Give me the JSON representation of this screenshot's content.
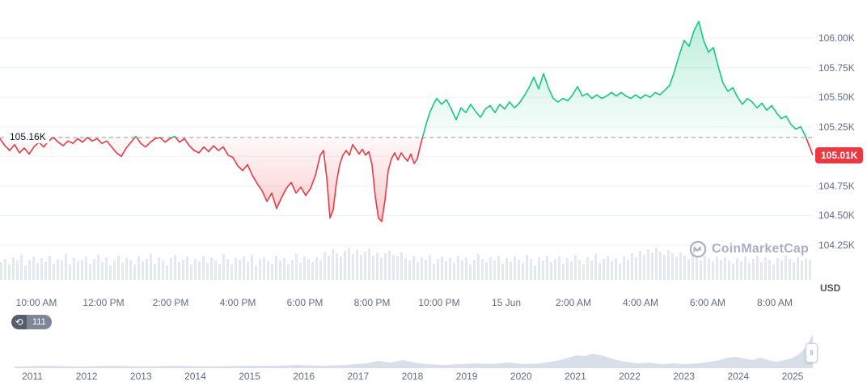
{
  "chart_data": {
    "type": "line",
    "unit": "USD",
    "baseline": {
      "value": 105.16,
      "label": "105.16K"
    },
    "last_price": {
      "value": 105.01,
      "label": "105.01K"
    },
    "y_axis": {
      "unit_label": "USD",
      "ticks": [
        {
          "value": 106.0,
          "label": "106.00K"
        },
        {
          "value": 105.75,
          "label": "105.75K"
        },
        {
          "value": 105.5,
          "label": "105.50K"
        },
        {
          "value": 105.25,
          "label": "105.25K"
        },
        {
          "value": 105.0,
          "label": ""
        },
        {
          "value": 104.75,
          "label": "104.75K"
        },
        {
          "value": 104.5,
          "label": "104.50K"
        },
        {
          "value": 104.25,
          "label": "104.25K"
        }
      ]
    },
    "x_labels": [
      "10:00 AM",
      "12:00 PM",
      "2:00 PM",
      "4:00 PM",
      "6:00 PM",
      "8:00 PM",
      "10:00 PM",
      "15 Jun",
      "2:00 AM",
      "4:00 AM",
      "6:00 AM",
      "8:00 AM"
    ],
    "colors": {
      "up": "#16c784",
      "down": "#ea3943",
      "grid": "#eff2f5",
      "axis_text": "#616e85",
      "baseline_dash": "#7d8aa0",
      "volume": "#e4e8ef",
      "minimap_fill": "#d9dfe8",
      "badge_bg": "#ea3943",
      "badge_text": "#ffffff"
    },
    "points": [
      [
        0,
        105.15
      ],
      [
        6,
        105.09
      ],
      [
        12,
        105.05
      ],
      [
        18,
        105.1
      ],
      [
        24,
        105.03
      ],
      [
        30,
        105.07
      ],
      [
        36,
        105.02
      ],
      [
        42,
        105.08
      ],
      [
        48,
        105.12
      ],
      [
        54,
        105.08
      ],
      [
        60,
        105.13
      ],
      [
        66,
        105.16
      ],
      [
        72,
        105.12
      ],
      [
        78,
        105.09
      ],
      [
        84,
        105.13
      ],
      [
        90,
        105.11
      ],
      [
        96,
        105.15
      ],
      [
        102,
        105.12
      ],
      [
        108,
        105.16
      ],
      [
        114,
        105.13
      ],
      [
        120,
        105.15
      ],
      [
        126,
        105.11
      ],
      [
        132,
        105.13
      ],
      [
        138,
        105.08
      ],
      [
        144,
        105.03
      ],
      [
        150,
        105.0
      ],
      [
        156,
        105.07
      ],
      [
        162,
        105.12
      ],
      [
        168,
        105.17
      ],
      [
        174,
        105.11
      ],
      [
        180,
        105.08
      ],
      [
        186,
        105.12
      ],
      [
        192,
        105.15
      ],
      [
        198,
        105.16
      ],
      [
        204,
        105.12
      ],
      [
        210,
        105.15
      ],
      [
        216,
        105.17
      ],
      [
        222,
        105.12
      ],
      [
        228,
        105.15
      ],
      [
        234,
        105.09
      ],
      [
        240,
        105.05
      ],
      [
        246,
        105.03
      ],
      [
        252,
        105.08
      ],
      [
        258,
        105.04
      ],
      [
        264,
        105.09
      ],
      [
        270,
        105.05
      ],
      [
        276,
        105.08
      ],
      [
        282,
        105.01
      ],
      [
        288,
        104.99
      ],
      [
        294,
        104.92
      ],
      [
        300,
        104.88
      ],
      [
        306,
        104.93
      ],
      [
        312,
        104.84
      ],
      [
        318,
        104.77
      ],
      [
        324,
        104.71
      ],
      [
        330,
        104.62
      ],
      [
        336,
        104.69
      ],
      [
        342,
        104.56
      ],
      [
        348,
        104.65
      ],
      [
        354,
        104.73
      ],
      [
        360,
        104.78
      ],
      [
        366,
        104.69
      ],
      [
        372,
        104.74
      ],
      [
        378,
        104.67
      ],
      [
        384,
        104.73
      ],
      [
        390,
        104.84
      ],
      [
        396,
        105.01
      ],
      [
        400,
        105.05
      ],
      [
        404,
        104.82
      ],
      [
        408,
        104.48
      ],
      [
        412,
        104.55
      ],
      [
        416,
        104.78
      ],
      [
        420,
        104.93
      ],
      [
        424,
        105.01
      ],
      [
        428,
        105.05
      ],
      [
        432,
        105.01
      ],
      [
        436,
        105.1
      ],
      [
        440,
        105.06
      ],
      [
        444,
        105.02
      ],
      [
        448,
        105.06
      ],
      [
        452,
        105.01
      ],
      [
        456,
        105.04
      ],
      [
        460,
        104.93
      ],
      [
        464,
        104.66
      ],
      [
        468,
        104.48
      ],
      [
        472,
        104.45
      ],
      [
        476,
        104.63
      ],
      [
        480,
        104.88
      ],
      [
        484,
        104.98
      ],
      [
        488,
        105.03
      ],
      [
        492,
        104.97
      ],
      [
        496,
        105.03
      ],
      [
        500,
        104.99
      ],
      [
        504,
        104.96
      ],
      [
        508,
        105.02
      ],
      [
        512,
        104.94
      ],
      [
        516,
        104.98
      ],
      [
        520,
        105.1
      ],
      [
        524,
        105.2
      ],
      [
        528,
        105.3
      ],
      [
        532,
        105.38
      ],
      [
        536,
        105.44
      ],
      [
        540,
        105.49
      ],
      [
        546,
        105.44
      ],
      [
        552,
        105.48
      ],
      [
        558,
        105.4
      ],
      [
        564,
        105.31
      ],
      [
        570,
        105.41
      ],
      [
        576,
        105.37
      ],
      [
        582,
        105.44
      ],
      [
        588,
        105.38
      ],
      [
        594,
        105.33
      ],
      [
        600,
        105.4
      ],
      [
        606,
        105.43
      ],
      [
        612,
        105.37
      ],
      [
        618,
        105.44
      ],
      [
        624,
        105.4
      ],
      [
        630,
        105.46
      ],
      [
        636,
        105.41
      ],
      [
        642,
        105.45
      ],
      [
        648,
        105.51
      ],
      [
        654,
        105.58
      ],
      [
        660,
        105.67
      ],
      [
        666,
        105.57
      ],
      [
        672,
        105.7
      ],
      [
        678,
        105.58
      ],
      [
        684,
        105.49
      ],
      [
        690,
        105.46
      ],
      [
        696,
        105.49
      ],
      [
        702,
        105.47
      ],
      [
        708,
        105.52
      ],
      [
        714,
        105.59
      ],
      [
        720,
        105.51
      ],
      [
        726,
        105.53
      ],
      [
        732,
        105.49
      ],
      [
        738,
        105.52
      ],
      [
        744,
        105.49
      ],
      [
        750,
        105.51
      ],
      [
        756,
        105.54
      ],
      [
        762,
        105.51
      ],
      [
        768,
        105.54
      ],
      [
        774,
        105.51
      ],
      [
        780,
        105.49
      ],
      [
        786,
        105.52
      ],
      [
        792,
        105.49
      ],
      [
        798,
        105.52
      ],
      [
        804,
        105.5
      ],
      [
        810,
        105.54
      ],
      [
        816,
        105.52
      ],
      [
        822,
        105.56
      ],
      [
        828,
        105.6
      ],
      [
        834,
        105.72
      ],
      [
        840,
        105.86
      ],
      [
        846,
        105.98
      ],
      [
        852,
        105.93
      ],
      [
        858,
        106.06
      ],
      [
        864,
        106.14
      ],
      [
        870,
        105.98
      ],
      [
        876,
        105.88
      ],
      [
        882,
        105.92
      ],
      [
        888,
        105.76
      ],
      [
        894,
        105.62
      ],
      [
        900,
        105.55
      ],
      [
        906,
        105.58
      ],
      [
        912,
        105.5
      ],
      [
        918,
        105.44
      ],
      [
        924,
        105.49
      ],
      [
        930,
        105.46
      ],
      [
        936,
        105.41
      ],
      [
        942,
        105.45
      ],
      [
        948,
        105.39
      ],
      [
        954,
        105.43
      ],
      [
        960,
        105.37
      ],
      [
        966,
        105.32
      ],
      [
        972,
        105.34
      ],
      [
        978,
        105.27
      ],
      [
        984,
        105.23
      ],
      [
        990,
        105.25
      ],
      [
        996,
        105.17
      ],
      [
        1000,
        105.1
      ],
      [
        1005,
        105.01
      ]
    ],
    "volume_heights": [
      22,
      26,
      19,
      28,
      24,
      31,
      18,
      25,
      29,
      21,
      27,
      23,
      30,
      20,
      26,
      24,
      32,
      19,
      27,
      23,
      25,
      29,
      20,
      26,
      31,
      22,
      28,
      18,
      24,
      30,
      21,
      27,
      25,
      19,
      29,
      23,
      26,
      32,
      20,
      28,
      24,
      18,
      27,
      31,
      22,
      25,
      29,
      19,
      26,
      23,
      30,
      21,
      28,
      24,
      20,
      32,
      26,
      19,
      27,
      25,
      29,
      22,
      31,
      18,
      26,
      28,
      23,
      20,
      30,
      24,
      27,
      19,
      25,
      32,
      21,
      29,
      26,
      22,
      28,
      24,
      34,
      30,
      38,
      33,
      29,
      36,
      40,
      32,
      37,
      31,
      35,
      39,
      30,
      34,
      28,
      33,
      36,
      31,
      29,
      34,
      27,
      24,
      30,
      22,
      28,
      25,
      31,
      20,
      26,
      29,
      23,
      27,
      21,
      30,
      24,
      28,
      19,
      25,
      32,
      26,
      22,
      28,
      24,
      30,
      20,
      27,
      23,
      29,
      25,
      21,
      31,
      26,
      18,
      28,
      24,
      30,
      22,
      26,
      29,
      20,
      27,
      23,
      31,
      25,
      19,
      28,
      24,
      32,
      21,
      26,
      30,
      23,
      27,
      20,
      29,
      25,
      33,
      28,
      36,
      31,
      38,
      34,
      40,
      35,
      31,
      37,
      33,
      29,
      34,
      30,
      26,
      32,
      28,
      24,
      30,
      27,
      23,
      29,
      25,
      28,
      24,
      20,
      27,
      23,
      29,
      21,
      26,
      30,
      22,
      28,
      25,
      19,
      27,
      24,
      30,
      26,
      22,
      28,
      24,
      27,
      25
    ]
  },
  "minimap": {
    "years": [
      "2011",
      "2012",
      "2013",
      "2014",
      "2015",
      "2016",
      "2017",
      "2018",
      "2019",
      "2020",
      "2021",
      "2022",
      "2023",
      "2024",
      "2025"
    ],
    "profile": [
      [
        0,
        2
      ],
      [
        40,
        3
      ],
      [
        80,
        2
      ],
      [
        120,
        3
      ],
      [
        160,
        2
      ],
      [
        200,
        3
      ],
      [
        240,
        2
      ],
      [
        280,
        3
      ],
      [
        320,
        3
      ],
      [
        350,
        4
      ],
      [
        380,
        3
      ],
      [
        410,
        4
      ],
      [
        435,
        6
      ],
      [
        450,
        9
      ],
      [
        465,
        7
      ],
      [
        480,
        10
      ],
      [
        495,
        7
      ],
      [
        510,
        5
      ],
      [
        530,
        4
      ],
      [
        550,
        5
      ],
      [
        570,
        6
      ],
      [
        590,
        5
      ],
      [
        610,
        7
      ],
      [
        630,
        5
      ],
      [
        650,
        6
      ],
      [
        670,
        9
      ],
      [
        685,
        13
      ],
      [
        695,
        16
      ],
      [
        705,
        15
      ],
      [
        715,
        18
      ],
      [
        725,
        16
      ],
      [
        735,
        13
      ],
      [
        745,
        10
      ],
      [
        755,
        8
      ],
      [
        770,
        6
      ],
      [
        785,
        7
      ],
      [
        800,
        5
      ],
      [
        815,
        6
      ],
      [
        830,
        5
      ],
      [
        845,
        6
      ],
      [
        860,
        8
      ],
      [
        872,
        10
      ],
      [
        882,
        13
      ],
      [
        892,
        14
      ],
      [
        902,
        12
      ],
      [
        912,
        10
      ],
      [
        922,
        13
      ],
      [
        932,
        10
      ],
      [
        942,
        8
      ],
      [
        952,
        10
      ],
      [
        960,
        12
      ],
      [
        968,
        16
      ],
      [
        975,
        22
      ],
      [
        980,
        28
      ],
      [
        984,
        36
      ],
      [
        987,
        42
      ]
    ]
  },
  "controls": {
    "history_count": "111"
  },
  "watermark": {
    "label": "CoinMarketCap"
  }
}
